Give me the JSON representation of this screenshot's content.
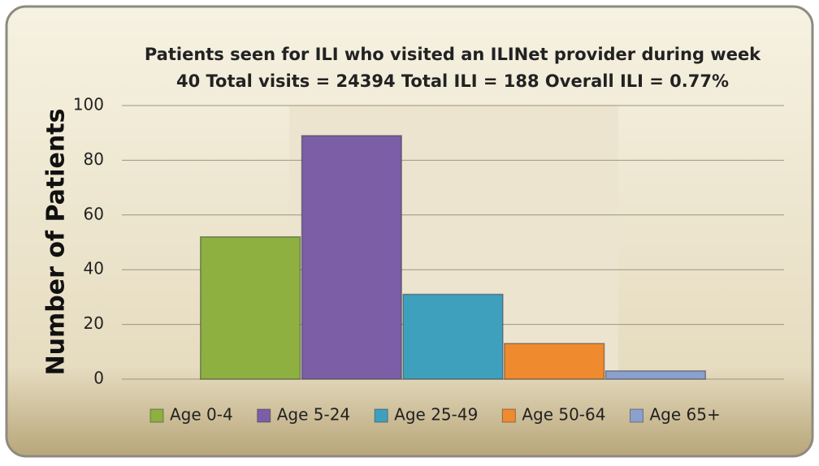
{
  "chart_data": {
    "type": "bar",
    "title": [
      "Patients seen for ILI who visited an ILINet provider during week",
      "40 Total visits = 24394 Total ILI = 188 Overall ILI = 0.77%"
    ],
    "y_label": "Number of Patients",
    "series": [
      {
        "name": "Age 0-4",
        "color": "#8db040",
        "values": [
          52
        ]
      },
      {
        "name": "Age 5-24",
        "color": "#7b5ea6",
        "values": [
          89
        ]
      },
      {
        "name": "Age 25-49",
        "color": "#3fa0bd",
        "values": [
          31
        ]
      },
      {
        "name": "Age 50-64",
        "color": "#f08a2f",
        "values": [
          13
        ]
      },
      {
        "name": "Age 65+",
        "color": "#8aa0cf",
        "values": [
          3
        ]
      }
    ],
    "ylim": [
      0,
      100
    ],
    "yticks": [
      0,
      20,
      40,
      60,
      80,
      100
    ],
    "grid": true,
    "legend": "bottom"
  }
}
